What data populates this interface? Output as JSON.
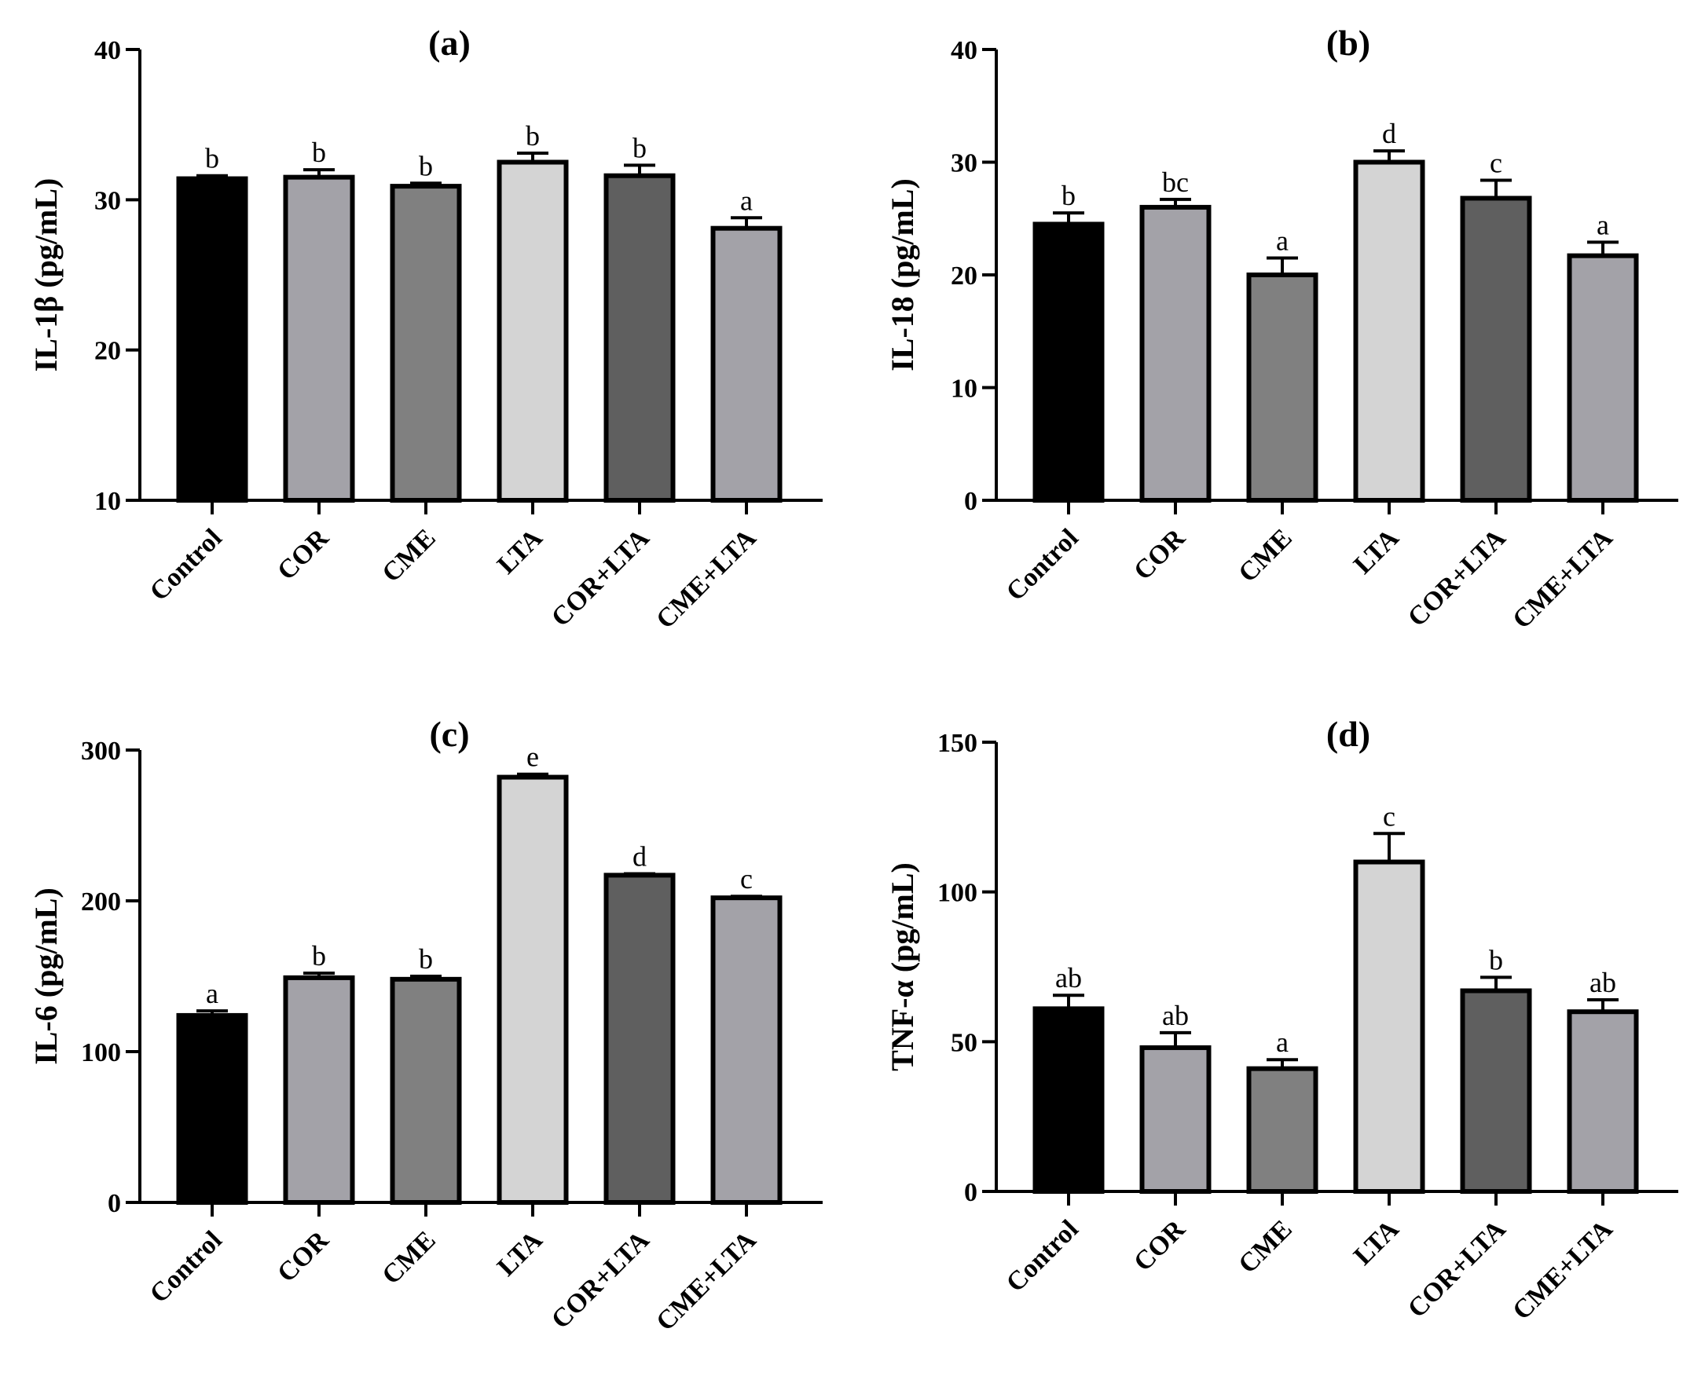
{
  "figure": {
    "panel_count": 4
  },
  "chart_data": [
    {
      "type": "bar",
      "panel": "(a)",
      "title": "(a)",
      "ylabel": "IL-1β (pg/mL)",
      "xlabel": "",
      "ylim": [
        10,
        40
      ],
      "yticks": [
        "10",
        "20",
        "30",
        "40"
      ],
      "categories": [
        "Control",
        "COR",
        "CME",
        "LTA",
        "COR+LTA",
        "CME+LTA"
      ],
      "values": [
        31.4,
        31.5,
        30.9,
        32.5,
        31.6,
        28.1
      ],
      "errors": [
        0.2,
        0.5,
        0.2,
        0.6,
        0.7,
        0.7
      ],
      "significance": [
        "b",
        "b",
        "b",
        "b",
        "b",
        "a"
      ],
      "colors": [
        "#000000",
        "#a3a2a8",
        "#808080",
        "#d4d4d4",
        "#5f5f5f",
        "#a3a2a8"
      ]
    },
    {
      "type": "bar",
      "panel": "(b)",
      "title": "(b)",
      "ylabel": "IL-18 (pg/mL)",
      "xlabel": "",
      "ylim": [
        0,
        40
      ],
      "yticks": [
        "0",
        "10",
        "20",
        "30",
        "40"
      ],
      "categories": [
        "Control",
        "COR",
        "CME",
        "LTA",
        "COR+LTA",
        "CME+LTA"
      ],
      "values": [
        24.5,
        26.0,
        20.0,
        30.0,
        26.8,
        21.7
      ],
      "errors": [
        1.0,
        0.7,
        1.5,
        1.0,
        1.6,
        1.2
      ],
      "significance": [
        "b",
        "bc",
        "a",
        "d",
        "c",
        "a"
      ],
      "colors": [
        "#000000",
        "#a3a2a8",
        "#808080",
        "#d4d4d4",
        "#5f5f5f",
        "#a3a2a8"
      ]
    },
    {
      "type": "bar",
      "panel": "(c)",
      "title": "(c)",
      "ylabel": "IL-6 (pg/mL)",
      "xlabel": "",
      "ylim": [
        0,
        300
      ],
      "yticks": [
        "0",
        "100",
        "200",
        "300"
      ],
      "categories": [
        "Control",
        "COR",
        "CME",
        "LTA",
        "COR+LTA",
        "CME+LTA"
      ],
      "values": [
        124,
        149,
        148,
        282,
        217,
        202
      ],
      "errors": [
        3,
        3,
        2,
        2,
        1,
        1
      ],
      "significance": [
        "a",
        "b",
        "b",
        "e",
        "d",
        "c"
      ],
      "colors": [
        "#000000",
        "#a3a2a8",
        "#808080",
        "#d4d4d4",
        "#5f5f5f",
        "#a3a2a8"
      ]
    },
    {
      "type": "bar",
      "panel": "(d)",
      "title": "(d)",
      "ylabel": "TNF-α (pg/mL)",
      "xlabel": "",
      "ylim": [
        0,
        150
      ],
      "yticks": [
        "0",
        "50",
        "100",
        "150"
      ],
      "categories": [
        "Control",
        "COR",
        "CME",
        "LTA",
        "COR+LTA",
        "CME+LTA"
      ],
      "values": [
        61,
        48,
        41,
        110,
        67,
        60
      ],
      "errors": [
        4.5,
        5,
        3,
        9.5,
        4.5,
        4
      ],
      "significance": [
        "ab",
        "ab",
        "a",
        "c",
        "b",
        "ab"
      ],
      "colors": [
        "#000000",
        "#a3a2a8",
        "#808080",
        "#d4d4d4",
        "#5f5f5f",
        "#a3a2a8"
      ]
    }
  ]
}
